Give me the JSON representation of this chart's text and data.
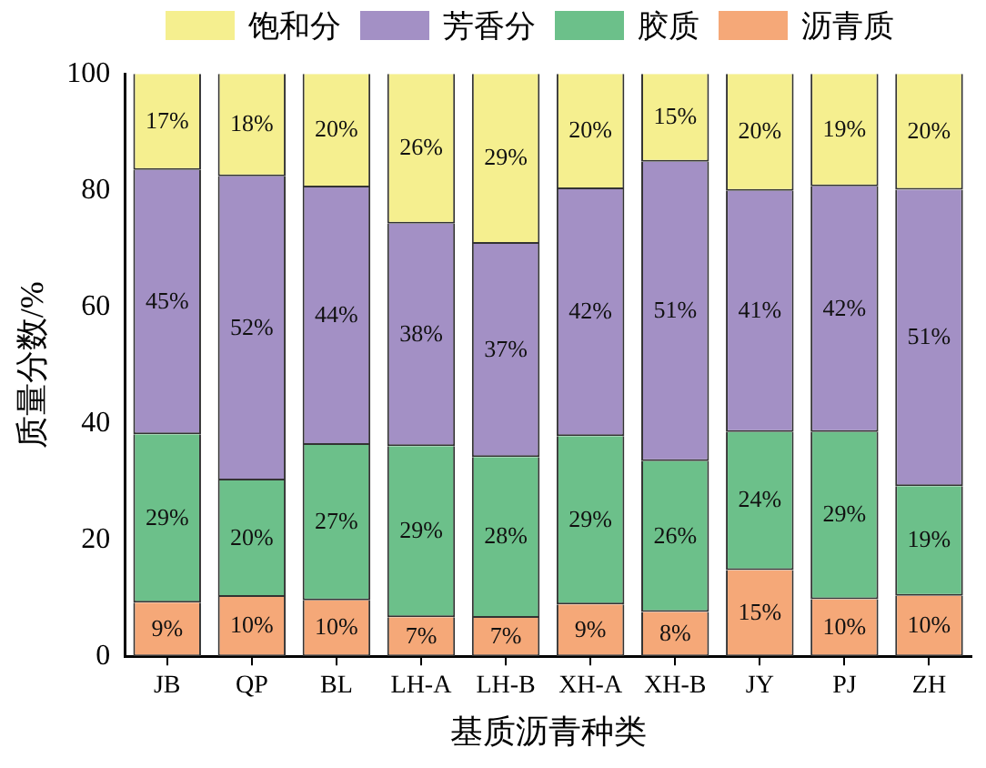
{
  "chart_data": {
    "type": "bar",
    "stacked": true,
    "xlabel": "基质沥青种类",
    "ylabel": "质量分数/%",
    "categories": [
      "JB",
      "QP",
      "BL",
      "LH-A",
      "LH-B",
      "XH-A",
      "XH-B",
      "JY",
      "PJ",
      "ZH"
    ],
    "series": [
      {
        "name": "沥青质",
        "color": "#f5a878",
        "values": [
          9.2,
          10.2,
          9.6,
          6.7,
          6.6,
          8.9,
          7.6,
          14.8,
          9.8,
          10.4
        ],
        "value_labels": [
          "9%",
          "10%",
          "10%",
          "7%",
          "7%",
          "9%",
          "8%",
          "15%",
          "10%",
          "10%"
        ]
      },
      {
        "name": "胶质",
        "color": "#6cc08a",
        "values": [
          28.9,
          20.0,
          26.7,
          29.4,
          27.6,
          28.9,
          25.9,
          23.7,
          28.7,
          18.8
        ],
        "value_labels": [
          "29%",
          "20%",
          "27%",
          "29%",
          "28%",
          "29%",
          "26%",
          "24%",
          "29%",
          "19%"
        ]
      },
      {
        "name": "芳香分",
        "color": "#a390c5",
        "values": [
          45.4,
          52.2,
          44.2,
          38.2,
          36.6,
          42.4,
          51.4,
          41.4,
          42.2,
          50.9
        ],
        "value_labels": [
          "45%",
          "52%",
          "44%",
          "38%",
          "37%",
          "42%",
          "51%",
          "41%",
          "42%",
          "51%"
        ]
      },
      {
        "name": "饱和分",
        "color": "#f5ef8f",
        "values": [
          16.5,
          17.6,
          19.5,
          25.7,
          29.2,
          19.8,
          15.1,
          20.1,
          19.3,
          19.9
        ],
        "value_labels": [
          "17%",
          "18%",
          "20%",
          "26%",
          "29%",
          "20%",
          "15%",
          "20%",
          "19%",
          "20%"
        ]
      }
    ],
    "ylim": [
      0,
      100
    ],
    "yticks": [
      0,
      20,
      40,
      60,
      80,
      100
    ],
    "grid": false,
    "legend": "top"
  }
}
